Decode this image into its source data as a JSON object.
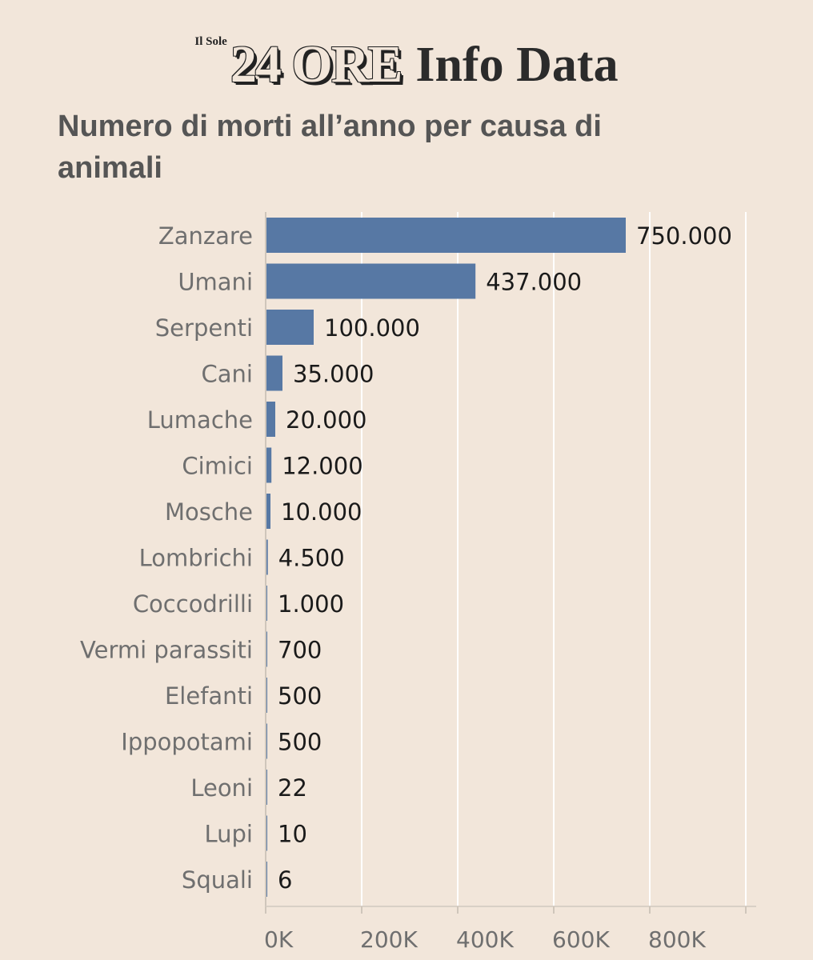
{
  "brand": {
    "prefix": "Il Sole",
    "name": "24 ORE",
    "suffix": "Info Data"
  },
  "chart_data": {
    "type": "bar",
    "orientation": "horizontal",
    "title": "Numero di morti all’anno per causa di animali",
    "categories": [
      "Zanzare",
      "Umani",
      "Serpenti",
      "Cani",
      "Lumache",
      "Cimici",
      "Mosche",
      "Lombrichi",
      "Coccodrilli",
      "Vermi parassiti",
      "Elefanti",
      "Ippopotami",
      "Leoni",
      "Lupi",
      "Squali"
    ],
    "values": [
      750000,
      437000,
      100000,
      35000,
      20000,
      12000,
      10000,
      4500,
      1000,
      700,
      500,
      500,
      22,
      10,
      6
    ],
    "value_labels": [
      "750.000",
      "437.000",
      "100.000",
      "35.000",
      "20.000",
      "12.000",
      "10.000",
      "4.500",
      "1.000",
      "700",
      "500",
      "500",
      "22",
      "10",
      "6"
    ],
    "xlim": [
      0,
      1000000
    ],
    "xticks": [
      0,
      200000,
      400000,
      600000,
      800000,
      1000000
    ],
    "xtick_labels": [
      "0K",
      "200K",
      "400K",
      "600K",
      "800K",
      ""
    ],
    "grid": true,
    "bar_color": "#5778a4",
    "grid_color": "#ffffff",
    "background": "#f2e6da"
  }
}
